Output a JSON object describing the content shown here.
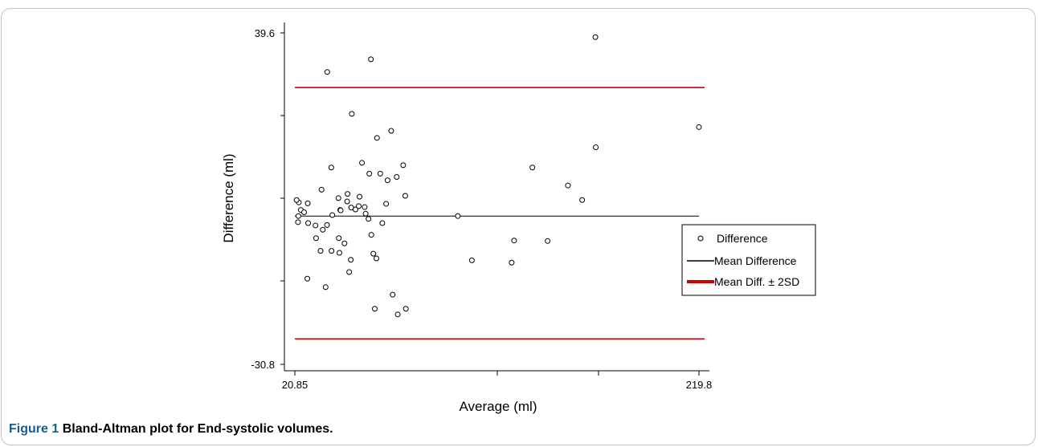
{
  "caption": {
    "label": "Figure 1",
    "text": "Bland-Altman plot for End-systolic volumes."
  },
  "chart_data": {
    "type": "scatter",
    "xlabel": "Average (ml)",
    "ylabel": "Difference (ml)",
    "xlim": [
      20.85,
      219.8
    ],
    "ylim": [
      -30.8,
      39.6
    ],
    "x_tick_labels": [
      "20.85",
      "219.8"
    ],
    "y_tick_labels": [
      "39.6",
      "-30.8"
    ],
    "mean_difference": 0.7,
    "upper_limit": 28.0,
    "lower_limit": -25.4,
    "legend": {
      "position": "right",
      "entries": [
        "Difference",
        "Mean Difference",
        "Mean Diff. ± 2SD"
      ]
    },
    "series": [
      {
        "name": "Difference",
        "points": [
          {
            "x": 36.8,
            "y": 31.3
          },
          {
            "x": 58.3,
            "y": 34.0
          },
          {
            "x": 71.5,
            "y": -20.2
          },
          {
            "x": 75.5,
            "y": -19.0
          },
          {
            "x": 127.6,
            "y": -9.2
          },
          {
            "x": 162.3,
            "y": 4.1
          },
          {
            "x": 169.0,
            "y": 15.3
          },
          {
            "x": 145.3,
            "y": -4.6
          },
          {
            "x": 168.8,
            "y": 38.7
          },
          {
            "x": 219.8,
            "y": 19.6
          },
          {
            "x": 137.8,
            "y": 11.0
          },
          {
            "x": 101.1,
            "y": 0.7
          },
          {
            "x": 128.8,
            "y": -4.5
          },
          {
            "x": 155.3,
            "y": 7.2
          },
          {
            "x": 108.0,
            "y": -8.7
          },
          {
            "x": 75.2,
            "y": 5.0
          },
          {
            "x": 71.0,
            "y": 9.0
          },
          {
            "x": 68.3,
            "y": 18.8
          },
          {
            "x": 48.9,
            "y": 22.4
          },
          {
            "x": 42.3,
            "y": 4.5
          },
          {
            "x": 34.0,
            "y": 6.3
          },
          {
            "x": 38.8,
            "y": 11.0
          },
          {
            "x": 43.2,
            "y": 2.0
          },
          {
            "x": 61.3,
            "y": 17.3
          },
          {
            "x": 53.9,
            "y": 12.0
          },
          {
            "x": 57.5,
            "y": 9.7
          },
          {
            "x": 61.0,
            "y": -8.3
          },
          {
            "x": 69.0,
            "y": -16.0
          },
          {
            "x": 52.7,
            "y": 4.8
          },
          {
            "x": 52.3,
            "y": 2.8
          },
          {
            "x": 65.8,
            "y": 3.3
          },
          {
            "x": 66.5,
            "y": 8.3
          },
          {
            "x": 74.2,
            "y": 11.5
          },
          {
            "x": 62.9,
            "y": 9.7
          },
          {
            "x": 22.8,
            "y": 3.6
          },
          {
            "x": 27.2,
            "y": 3.4
          },
          {
            "x": 43.4,
            "y": 1.9
          },
          {
            "x": 46.6,
            "y": 3.8
          },
          {
            "x": 46.8,
            "y": 5.4
          },
          {
            "x": 21.7,
            "y": 4.1
          },
          {
            "x": 23.8,
            "y": 2.0
          },
          {
            "x": 25.4,
            "y": 1.5
          },
          {
            "x": 22.6,
            "y": 0.7
          },
          {
            "x": 22.4,
            "y": -0.6
          },
          {
            "x": 27.4,
            "y": -0.8
          },
          {
            "x": 31.0,
            "y": -1.3
          },
          {
            "x": 31.3,
            "y": -4.0
          },
          {
            "x": 33.5,
            "y": -6.7
          },
          {
            "x": 38.9,
            "y": -6.7
          },
          {
            "x": 42.5,
            "y": -4.0
          },
          {
            "x": 42.8,
            "y": -7.1
          },
          {
            "x": 45.3,
            "y": -5.1
          },
          {
            "x": 48.4,
            "y": -8.6
          },
          {
            "x": 48.6,
            "y": 2.5
          },
          {
            "x": 50.7,
            "y": 2.1
          },
          {
            "x": 55.2,
            "y": 2.6
          },
          {
            "x": 55.7,
            "y": 1.2
          },
          {
            "x": 57.1,
            "y": 0.1
          },
          {
            "x": 58.5,
            "y": -3.3
          },
          {
            "x": 59.5,
            "y": -7.3
          },
          {
            "x": 63.9,
            "y": -0.8
          },
          {
            "x": 47.6,
            "y": -11.2
          },
          {
            "x": 36.0,
            "y": -14.4
          },
          {
            "x": 60.2,
            "y": -19.0
          },
          {
            "x": 27.0,
            "y": -12.6
          },
          {
            "x": 34.6,
            "y": -2.2
          },
          {
            "x": 36.7,
            "y": -1.2
          },
          {
            "x": 39.3,
            "y": 0.9
          }
        ]
      }
    ],
    "lines": [
      {
        "name": "Mean Difference",
        "y": 0.7,
        "color": "#000000"
      },
      {
        "name": "Mean Diff. ± 2SD",
        "y": 28.0,
        "color": "#cc0000"
      },
      {
        "name": "Mean Diff. ± 2SD",
        "y": -25.4,
        "color": "#cc0000"
      }
    ],
    "colors": {
      "limit_line": "#cc0000",
      "mean_line": "#000000",
      "point": "#000000"
    }
  }
}
